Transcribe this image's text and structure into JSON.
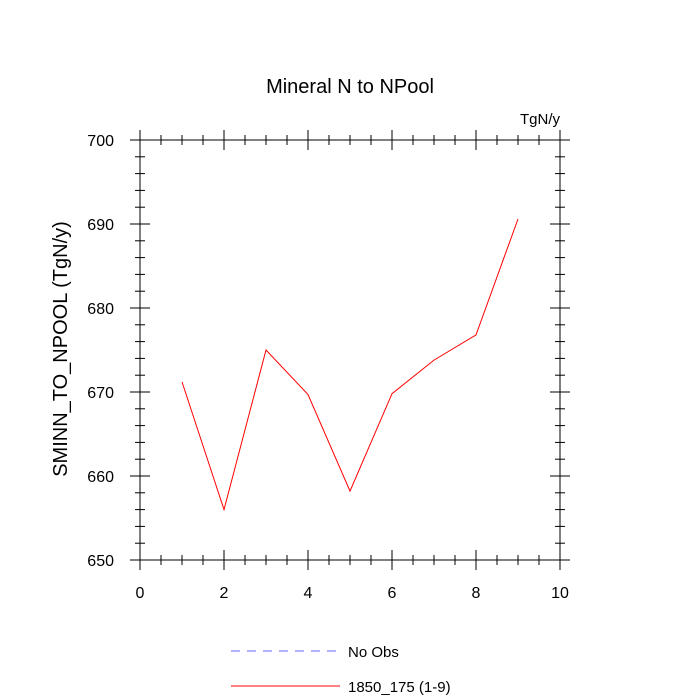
{
  "chart_data": {
    "type": "line",
    "title": "Mineral N to NPool",
    "units_label": "TgN/y",
    "ylabel": "SMINN_TO_NPOOL  (TgN/y)",
    "xlabel": "",
    "xlim": [
      0,
      10
    ],
    "ylim": [
      650,
      700
    ],
    "x_ticks": [
      0,
      2,
      4,
      6,
      8,
      10
    ],
    "y_ticks": [
      650,
      660,
      670,
      680,
      690,
      700
    ],
    "grid": false,
    "legend_position": "bottom",
    "series": [
      {
        "name": "1850_175 (1-9)",
        "color": "#ff0000",
        "dash": "solid",
        "x": [
          1,
          2,
          3,
          4,
          5,
          6,
          7,
          8,
          9
        ],
        "y": [
          671.2,
          656.0,
          675.0,
          669.7,
          658.2,
          669.8,
          673.8,
          676.8,
          690.6
        ]
      }
    ],
    "legend": [
      {
        "label": "No Obs",
        "color": "#6666ff",
        "dash": "dashed"
      },
      {
        "label": "1850_175 (1-9)",
        "color": "#ff0000",
        "dash": "solid"
      }
    ]
  }
}
